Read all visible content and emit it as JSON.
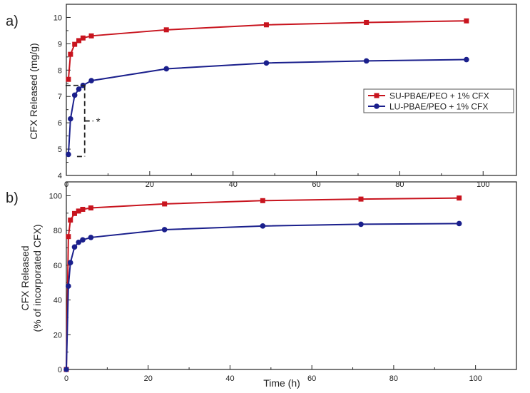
{
  "colors": {
    "series_red": "#c8141e",
    "series_blue": "#1a1f8c",
    "axis": "#222222"
  },
  "chart_data": [
    {
      "panel_label": "a)",
      "type": "line",
      "title": "",
      "xlabel": "",
      "ylabel": "CFX Released (mg/g)",
      "xlim": [
        0,
        108
      ],
      "ylim": [
        4,
        10.5
      ],
      "xticks": [
        0,
        20,
        40,
        60,
        80,
        100
      ],
      "yticks": [
        4,
        5,
        6,
        7,
        8,
        9,
        10
      ],
      "legend_position": "right",
      "series": [
        {
          "name": "SU-PBAE/PEO + 1% CFX",
          "color": "#c8141e",
          "marker": "square",
          "x": [
            0.5,
            1,
            2,
            3,
            4,
            6,
            24,
            48,
            72,
            96
          ],
          "y": [
            7.65,
            8.6,
            8.98,
            9.12,
            9.22,
            9.3,
            9.53,
            9.72,
            9.81,
            9.87
          ]
        },
        {
          "name": "LU-PBAE/PEO + 1% CFX",
          "color": "#1a1f8c",
          "marker": "circle",
          "x": [
            0.5,
            1,
            2,
            3,
            4,
            6,
            24,
            48,
            72,
            96
          ],
          "y": [
            4.8,
            6.15,
            7.05,
            7.28,
            7.42,
            7.6,
            8.05,
            8.27,
            8.35,
            8.4
          ]
        }
      ],
      "annotation": {
        "text": "*",
        "x_from": 0.5,
        "x_to": 4,
        "y_low": 4.72,
        "y_high": 7.42,
        "x_bracket": 4.4
      }
    },
    {
      "panel_label": "b)",
      "type": "line",
      "title": "",
      "xlabel": "Time (h)",
      "ylabel_lines": [
        "CFX Released",
        "(% of incorporated CFX)"
      ],
      "xlim": [
        0,
        110
      ],
      "ylim": [
        0,
        108
      ],
      "xticks": [
        0,
        20,
        40,
        60,
        80,
        100
      ],
      "yticks": [
        0,
        20,
        40,
        60,
        80,
        100
      ],
      "series": [
        {
          "name": "SU-PBAE/PEO + 1% CFX",
          "color": "#c8141e",
          "marker": "square",
          "x": [
            0,
            0.5,
            1,
            2,
            3,
            4,
            6,
            24,
            48,
            72,
            96
          ],
          "y": [
            0,
            76.5,
            86,
            89.8,
            91.2,
            92.2,
            93,
            95.3,
            97.2,
            98.1,
            98.7
          ]
        },
        {
          "name": "LU-PBAE/PEO + 1% CFX",
          "color": "#1a1f8c",
          "marker": "circle",
          "x": [
            0,
            0.5,
            1,
            2,
            3,
            4,
            6,
            24,
            48,
            72,
            96
          ],
          "y": [
            0,
            48,
            61.5,
            70.5,
            73.2,
            74.6,
            76,
            80.5,
            82.6,
            83.6,
            84
          ]
        }
      ]
    }
  ]
}
